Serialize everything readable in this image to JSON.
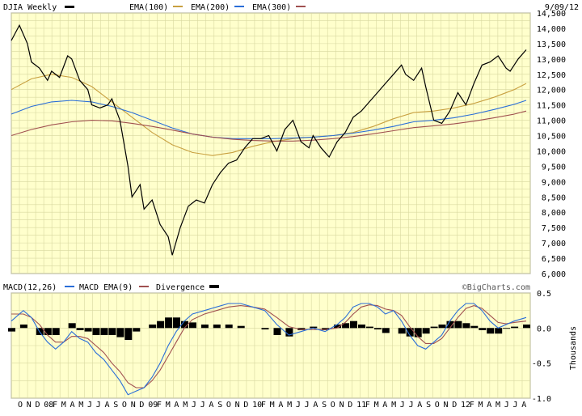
{
  "chart_data": [
    {
      "type": "line",
      "title": "DJIA Weekly",
      "date_label": "9/09/12",
      "legend": [
        "DJIA Weekly",
        "EMA(100)",
        "EMA(200)",
        "EMA(300)"
      ],
      "y_ticks": [
        "14,500",
        "14,000",
        "13,500",
        "13,000",
        "12,500",
        "12,000",
        "11,500",
        "11,000",
        "10,500",
        "10,000",
        "9,500",
        "9,000",
        "8,500",
        "8,000",
        "7,500",
        "7,000",
        "6,500",
        "6,000"
      ],
      "ylim": [
        6000,
        14500
      ],
      "grid": true,
      "colors": {
        "price": "#000000",
        "ema100": "#c8a040",
        "ema200": "#2a6ed8",
        "ema300": "#a05050",
        "background": "#ffffcc",
        "grid": "#d8d8a0"
      },
      "series": [
        {
          "name": "DJIA Weekly",
          "x": [
            0,
            4,
            8,
            10,
            14,
            18,
            20,
            24,
            28,
            30,
            34,
            38,
            40,
            44,
            48,
            50,
            54,
            58,
            60,
            64,
            66,
            70,
            74,
            78,
            80,
            84,
            88,
            92,
            96,
            100,
            104,
            108,
            112,
            116,
            120,
            124,
            128,
            132,
            136,
            140,
            144,
            148,
            150,
            154,
            158,
            162,
            166,
            170,
            174,
            178,
            182,
            186,
            190,
            194,
            196,
            200,
            204,
            206,
            210,
            214,
            218,
            222,
            226,
            230,
            234,
            238,
            242,
            246,
            248,
            252,
            256
          ],
          "values": [
            13600,
            14100,
            13500,
            12900,
            12700,
            12300,
            12600,
            12400,
            13100,
            13000,
            12300,
            12000,
            11500,
            11400,
            11500,
            11700,
            11000,
            9500,
            8500,
            8900,
            8100,
            8400,
            7600,
            7200,
            6600,
            7500,
            8200,
            8400,
            8300,
            8900,
            9300,
            9600,
            9700,
            10100,
            10400,
            10400,
            10500,
            10000,
            10700,
            11000,
            10300,
            10100,
            10500,
            10100,
            9800,
            10300,
            10600,
            11100,
            11300,
            11600,
            11900,
            12200,
            12500,
            12800,
            12500,
            12300,
            12700,
            12100,
            11000,
            10900,
            11300,
            11900,
            11500,
            12200,
            12800,
            12900,
            13100,
            12700,
            12600,
            13000,
            13300
          ]
        },
        {
          "name": "EMA(100)",
          "x": [
            0,
            10,
            20,
            30,
            40,
            50,
            60,
            70,
            80,
            90,
            100,
            110,
            120,
            130,
            140,
            150,
            160,
            170,
            180,
            190,
            200,
            210,
            220,
            230,
            240,
            250,
            256
          ],
          "values": [
            12000,
            12350,
            12500,
            12400,
            12100,
            11600,
            11100,
            10600,
            10200,
            9950,
            9850,
            9950,
            10150,
            10300,
            10400,
            10450,
            10500,
            10600,
            10800,
            11050,
            11250,
            11300,
            11400,
            11550,
            11750,
            12000,
            12200
          ]
        },
        {
          "name": "EMA(200)",
          "x": [
            0,
            10,
            20,
            30,
            40,
            50,
            60,
            70,
            80,
            90,
            100,
            110,
            120,
            130,
            140,
            150,
            160,
            170,
            180,
            190,
            200,
            210,
            220,
            230,
            240,
            250,
            256
          ],
          "values": [
            11200,
            11450,
            11600,
            11650,
            11600,
            11450,
            11250,
            11000,
            10750,
            10550,
            10450,
            10400,
            10400,
            10400,
            10420,
            10450,
            10500,
            10580,
            10680,
            10800,
            10950,
            11000,
            11080,
            11200,
            11350,
            11520,
            11650
          ]
        },
        {
          "name": "EMA(300)",
          "x": [
            0,
            10,
            20,
            30,
            40,
            50,
            60,
            70,
            80,
            90,
            100,
            110,
            120,
            130,
            140,
            150,
            160,
            170,
            180,
            190,
            200,
            210,
            220,
            230,
            240,
            250,
            256
          ],
          "values": [
            10500,
            10700,
            10850,
            10950,
            11000,
            10980,
            10900,
            10800,
            10680,
            10550,
            10450,
            10380,
            10340,
            10320,
            10320,
            10350,
            10400,
            10470,
            10560,
            10660,
            10760,
            10820,
            10880,
            10970,
            11080,
            11200,
            11300
          ]
        }
      ]
    },
    {
      "type": "line",
      "legend": [
        "MACD(12,26)",
        "MACD EMA(9)",
        "Divergence"
      ],
      "credit": "©BigCharts.com",
      "ylabel": "Thousands",
      "y_ticks": [
        "0.5",
        "0.0",
        "-0.5",
        "-1.0"
      ],
      "ylim": [
        -1.0,
        0.5
      ],
      "x_ticks": [
        "O",
        "N",
        "D",
        "08",
        "F",
        "M",
        "A",
        "M",
        "J",
        "J",
        "A",
        "S",
        "O",
        "N",
        "D",
        "09",
        "F",
        "M",
        "A",
        "M",
        "J",
        "J",
        "A",
        "S",
        "O",
        "N",
        "D",
        "10",
        "F",
        "M",
        "A",
        "M",
        "J",
        "J",
        "A",
        "S",
        "O",
        "N",
        "D",
        "11",
        "F",
        "M",
        "A",
        "M",
        "J",
        "J",
        "A",
        "S",
        "O",
        "N",
        "D",
        "12",
        "F",
        "M",
        "A",
        "M",
        "J",
        "J",
        "A"
      ],
      "colors": {
        "macd": "#2a6ed8",
        "signal": "#a05050",
        "divergence": "#000000"
      },
      "series": [
        {
          "name": "MACD(12,26)",
          "x": [
            0,
            6,
            10,
            14,
            18,
            22,
            26,
            30,
            34,
            38,
            42,
            46,
            50,
            54,
            58,
            62,
            66,
            70,
            74,
            78,
            82,
            86,
            90,
            96,
            102,
            108,
            114,
            120,
            126,
            132,
            138,
            144,
            150,
            156,
            162,
            166,
            170,
            174,
            178,
            182,
            186,
            190,
            194,
            198,
            202,
            206,
            210,
            214,
            218,
            222,
            226,
            230,
            234,
            238,
            242,
            246,
            250,
            256
          ],
          "values": [
            0.1,
            0.25,
            0.15,
            -0.05,
            -0.2,
            -0.3,
            -0.2,
            -0.05,
            -0.15,
            -0.2,
            -0.35,
            -0.45,
            -0.6,
            -0.75,
            -0.95,
            -0.9,
            -0.85,
            -0.7,
            -0.5,
            -0.25,
            -0.05,
            0.1,
            0.2,
            0.25,
            0.3,
            0.35,
            0.35,
            0.3,
            0.25,
            0.05,
            -0.1,
            -0.05,
            0.0,
            -0.05,
            0.05,
            0.15,
            0.3,
            0.35,
            0.35,
            0.3,
            0.2,
            0.25,
            0.1,
            -0.1,
            -0.25,
            -0.3,
            -0.2,
            -0.1,
            0.1,
            0.25,
            0.35,
            0.35,
            0.25,
            0.1,
            0.0,
            0.05,
            0.1,
            0.15
          ]
        },
        {
          "name": "MACD EMA(9)",
          "x": [
            0,
            6,
            10,
            14,
            18,
            22,
            26,
            30,
            34,
            38,
            42,
            46,
            50,
            54,
            58,
            62,
            66,
            70,
            74,
            78,
            82,
            86,
            90,
            96,
            102,
            108,
            114,
            120,
            126,
            132,
            138,
            144,
            150,
            156,
            162,
            166,
            170,
            174,
            178,
            182,
            186,
            190,
            194,
            198,
            202,
            206,
            210,
            214,
            218,
            222,
            226,
            230,
            234,
            238,
            242,
            246,
            250,
            256
          ],
          "values": [
            0.2,
            0.2,
            0.15,
            0.05,
            -0.1,
            -0.2,
            -0.2,
            -0.12,
            -0.12,
            -0.15,
            -0.25,
            -0.35,
            -0.5,
            -0.62,
            -0.78,
            -0.85,
            -0.85,
            -0.75,
            -0.6,
            -0.4,
            -0.2,
            0.0,
            0.12,
            0.2,
            0.25,
            0.3,
            0.32,
            0.3,
            0.27,
            0.15,
            0.02,
            -0.02,
            -0.02,
            -0.02,
            0.0,
            0.08,
            0.2,
            0.3,
            0.33,
            0.32,
            0.27,
            0.25,
            0.18,
            0.02,
            -0.12,
            -0.22,
            -0.22,
            -0.15,
            0.0,
            0.15,
            0.28,
            0.32,
            0.28,
            0.18,
            0.08,
            0.06,
            0.08,
            0.1
          ]
        },
        {
          "name": "Divergence",
          "x": [
            0,
            6,
            10,
            14,
            18,
            22,
            26,
            30,
            34,
            38,
            42,
            46,
            50,
            54,
            58,
            62,
            66,
            70,
            74,
            78,
            82,
            86,
            90,
            96,
            102,
            108,
            114,
            120,
            126,
            132,
            138,
            144,
            150,
            156,
            162,
            166,
            170,
            174,
            178,
            182,
            186,
            190,
            194,
            198,
            202,
            206,
            210,
            214,
            218,
            222,
            226,
            230,
            234,
            238,
            242,
            246,
            250,
            256
          ],
          "values": [
            -0.05,
            0.05,
            0.0,
            -0.1,
            -0.1,
            -0.1,
            0.0,
            0.07,
            -0.03,
            -0.05,
            -0.1,
            -0.1,
            -0.1,
            -0.13,
            -0.17,
            -0.05,
            0.0,
            0.05,
            0.1,
            0.15,
            0.15,
            0.1,
            0.08,
            0.05,
            0.05,
            0.05,
            0.03,
            0.0,
            -0.02,
            -0.1,
            -0.12,
            -0.03,
            0.02,
            -0.03,
            0.05,
            0.07,
            0.1,
            0.05,
            0.02,
            -0.02,
            -0.07,
            0.0,
            -0.08,
            -0.12,
            -0.13,
            -0.08,
            0.02,
            0.05,
            0.1,
            0.1,
            0.07,
            0.03,
            -0.03,
            -0.08,
            -0.08,
            -0.01,
            0.02,
            0.05
          ]
        }
      ]
    }
  ]
}
